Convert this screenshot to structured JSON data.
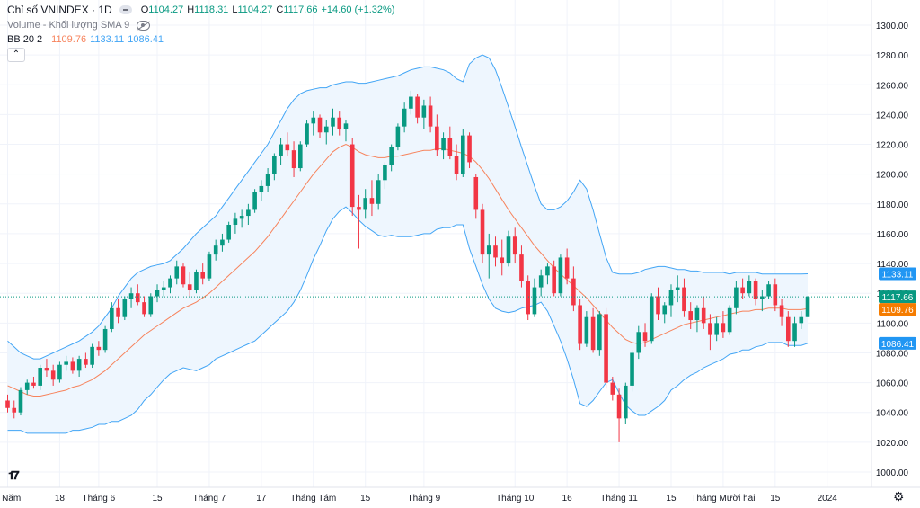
{
  "header": {
    "symbol": "Chỉ số VNINDEX · 1D",
    "ohlc": {
      "o_label": "O",
      "o_value": "1104.27",
      "h_label": "H",
      "h_value": "1118.31",
      "l_label": "L",
      "l_value": "1104.27",
      "c_label": "C",
      "c_value": "1117.66",
      "change": "+14.60 (+1.32%)"
    },
    "volume_label": "Volume - Khối lượng SMA 9",
    "bb_label": "BB 20 2",
    "bb_basis": "1109.76",
    "bb_upper": "1133.11",
    "bb_lower": "1086.41"
  },
  "colors": {
    "up": "#089981",
    "down": "#f23645",
    "basis": "#f7835c",
    "band": "#42a5f5",
    "band_fill": "#eef6fe",
    "grid": "#f0f3fa",
    "text": "#131722",
    "price_tag": "#089981"
  },
  "icons": [
    "tradingview-logo-icon",
    "gear-icon",
    "eye-off-icon",
    "collapse-icon"
  ],
  "chart_data": {
    "type": "candlestick",
    "ylim": [
      1000,
      1300
    ],
    "y_ticks": [
      "1300.00",
      "1280.00",
      "1260.00",
      "1240.00",
      "1220.00",
      "1200.00",
      "1180.00",
      "1160.00",
      "1140.00",
      "1120.00",
      "1100.00",
      "1080.00",
      "1060.00",
      "1040.00",
      "1020.00",
      "1000.00"
    ],
    "x_labels": [
      {
        "label": "g Năm",
        "idx": 0
      },
      {
        "label": "18",
        "idx": 8
      },
      {
        "label": "Tháng 6",
        "idx": 14
      },
      {
        "label": "15",
        "idx": 23
      },
      {
        "label": "Tháng 7",
        "idx": 31
      },
      {
        "label": "17",
        "idx": 39
      },
      {
        "label": "Tháng Tám",
        "idx": 47
      },
      {
        "label": "15",
        "idx": 55
      },
      {
        "label": "Tháng 9",
        "idx": 64
      },
      {
        "label": "Tháng 10",
        "idx": 78
      },
      {
        "label": "16",
        "idx": 86
      },
      {
        "label": "Tháng 11",
        "idx": 94
      },
      {
        "label": "15",
        "idx": 102
      },
      {
        "label": "Tháng Mười hai",
        "idx": 110
      },
      {
        "label": "15",
        "idx": 118
      },
      {
        "label": "2024",
        "idx": 126
      }
    ],
    "price_tags": {
      "upper": "1133.11",
      "last": "1117.66",
      "basis": "1109.76",
      "lower": "1086.41"
    },
    "candles": [
      [
        1048,
        1052,
        1040,
        1043
      ],
      [
        1043,
        1048,
        1036,
        1040
      ],
      [
        1040,
        1057,
        1038,
        1055
      ],
      [
        1055,
        1062,
        1052,
        1060
      ],
      [
        1060,
        1064,
        1056,
        1058
      ],
      [
        1058,
        1072,
        1055,
        1070
      ],
      [
        1070,
        1076,
        1064,
        1068
      ],
      [
        1068,
        1072,
        1058,
        1062
      ],
      [
        1062,
        1074,
        1060,
        1072
      ],
      [
        1072,
        1078,
        1068,
        1074
      ],
      [
        1074,
        1077,
        1066,
        1068
      ],
      [
        1068,
        1078,
        1064,
        1076
      ],
      [
        1076,
        1080,
        1070,
        1072
      ],
      [
        1072,
        1086,
        1070,
        1084
      ],
      [
        1084,
        1088,
        1078,
        1082
      ],
      [
        1082,
        1098,
        1080,
        1096
      ],
      [
        1096,
        1114,
        1094,
        1110
      ],
      [
        1110,
        1116,
        1100,
        1104
      ],
      [
        1104,
        1118,
        1102,
        1116
      ],
      [
        1116,
        1124,
        1110,
        1120
      ],
      [
        1120,
        1126,
        1112,
        1114
      ],
      [
        1114,
        1118,
        1104,
        1106
      ],
      [
        1106,
        1120,
        1104,
        1118
      ],
      [
        1118,
        1126,
        1114,
        1122
      ],
      [
        1122,
        1128,
        1118,
        1124
      ],
      [
        1124,
        1132,
        1120,
        1130
      ],
      [
        1130,
        1142,
        1126,
        1138
      ],
      [
        1138,
        1140,
        1124,
        1126
      ],
      [
        1126,
        1134,
        1118,
        1122
      ],
      [
        1122,
        1136,
        1120,
        1134
      ],
      [
        1134,
        1140,
        1126,
        1130
      ],
      [
        1130,
        1148,
        1128,
        1146
      ],
      [
        1146,
        1156,
        1142,
        1152
      ],
      [
        1152,
        1160,
        1148,
        1156
      ],
      [
        1156,
        1168,
        1154,
        1166
      ],
      [
        1166,
        1174,
        1160,
        1170
      ],
      [
        1170,
        1176,
        1164,
        1172
      ],
      [
        1172,
        1180,
        1166,
        1176
      ],
      [
        1176,
        1190,
        1174,
        1188
      ],
      [
        1188,
        1196,
        1182,
        1192
      ],
      [
        1192,
        1204,
        1188,
        1200
      ],
      [
        1200,
        1214,
        1196,
        1212
      ],
      [
        1212,
        1224,
        1206,
        1220
      ],
      [
        1220,
        1228,
        1212,
        1216
      ],
      [
        1216,
        1222,
        1198,
        1204
      ],
      [
        1204,
        1222,
        1202,
        1220
      ],
      [
        1220,
        1236,
        1218,
        1234
      ],
      [
        1234,
        1242,
        1226,
        1238
      ],
      [
        1238,
        1240,
        1224,
        1228
      ],
      [
        1228,
        1236,
        1220,
        1232
      ],
      [
        1232,
        1244,
        1226,
        1238
      ],
      [
        1238,
        1242,
        1226,
        1230
      ],
      [
        1230,
        1236,
        1222,
        1234
      ],
      [
        1220,
        1224,
        1172,
        1178
      ],
      [
        1178,
        1186,
        1150,
        1176
      ],
      [
        1176,
        1190,
        1170,
        1184
      ],
      [
        1184,
        1196,
        1172,
        1180
      ],
      [
        1180,
        1200,
        1176,
        1196
      ],
      [
        1196,
        1208,
        1190,
        1206
      ],
      [
        1206,
        1220,
        1202,
        1218
      ],
      [
        1218,
        1234,
        1216,
        1232
      ],
      [
        1232,
        1248,
        1228,
        1244
      ],
      [
        1244,
        1256,
        1240,
        1252
      ],
      [
        1252,
        1254,
        1234,
        1238
      ],
      [
        1238,
        1250,
        1230,
        1246
      ],
      [
        1246,
        1252,
        1228,
        1232
      ],
      [
        1232,
        1240,
        1212,
        1216
      ],
      [
        1216,
        1228,
        1210,
        1224
      ],
      [
        1224,
        1232,
        1210,
        1212
      ],
      [
        1212,
        1220,
        1196,
        1200
      ],
      [
        1200,
        1230,
        1198,
        1226
      ],
      [
        1226,
        1228,
        1204,
        1208
      ],
      [
        1198,
        1200,
        1170,
        1176
      ],
      [
        1176,
        1180,
        1140,
        1146
      ],
      [
        1146,
        1160,
        1130,
        1152
      ],
      [
        1152,
        1158,
        1138,
        1144
      ],
      [
        1144,
        1156,
        1132,
        1140
      ],
      [
        1140,
        1162,
        1138,
        1158
      ],
      [
        1158,
        1164,
        1140,
        1146
      ],
      [
        1146,
        1152,
        1124,
        1128
      ],
      [
        1128,
        1132,
        1102,
        1106
      ],
      [
        1106,
        1130,
        1104,
        1124
      ],
      [
        1124,
        1136,
        1118,
        1132
      ],
      [
        1132,
        1140,
        1126,
        1138
      ],
      [
        1138,
        1142,
        1118,
        1120
      ],
      [
        1120,
        1146,
        1118,
        1144
      ],
      [
        1144,
        1150,
        1126,
        1130
      ],
      [
        1130,
        1138,
        1108,
        1112
      ],
      [
        1112,
        1116,
        1082,
        1086
      ],
      [
        1086,
        1108,
        1084,
        1104
      ],
      [
        1104,
        1110,
        1080,
        1082
      ],
      [
        1082,
        1108,
        1078,
        1106
      ],
      [
        1106,
        1110,
        1056,
        1060
      ],
      [
        1060,
        1064,
        1048,
        1052
      ],
      [
        1052,
        1056,
        1020,
        1036
      ],
      [
        1036,
        1060,
        1032,
        1058
      ],
      [
        1058,
        1082,
        1054,
        1080
      ],
      [
        1080,
        1098,
        1076,
        1094
      ],
      [
        1094,
        1100,
        1084,
        1088
      ],
      [
        1088,
        1120,
        1086,
        1118
      ],
      [
        1118,
        1124,
        1102,
        1106
      ],
      [
        1106,
        1114,
        1100,
        1112
      ],
      [
        1112,
        1126,
        1104,
        1122
      ],
      [
        1122,
        1132,
        1114,
        1124
      ],
      [
        1124,
        1130,
        1104,
        1108
      ],
      [
        1108,
        1114,
        1096,
        1102
      ],
      [
        1102,
        1112,
        1094,
        1110
      ],
      [
        1110,
        1118,
        1096,
        1100
      ],
      [
        1100,
        1106,
        1082,
        1092
      ],
      [
        1092,
        1104,
        1088,
        1100
      ],
      [
        1100,
        1108,
        1090,
        1094
      ],
      [
        1094,
        1112,
        1092,
        1110
      ],
      [
        1110,
        1128,
        1106,
        1124
      ],
      [
        1124,
        1130,
        1116,
        1120
      ],
      [
        1120,
        1132,
        1118,
        1128
      ],
      [
        1128,
        1130,
        1112,
        1116
      ],
      [
        1116,
        1122,
        1108,
        1118
      ],
      [
        1118,
        1128,
        1116,
        1126
      ],
      [
        1126,
        1130,
        1108,
        1112
      ],
      [
        1112,
        1116,
        1098,
        1104
      ],
      [
        1104,
        1108,
        1084,
        1088
      ],
      [
        1088,
        1104,
        1084,
        1100
      ],
      [
        1100,
        1108,
        1096,
        1104
      ],
      [
        1104,
        1118.31,
        1104,
        1117.66
      ]
    ],
    "bb_basis": [
      1058,
      1056,
      1054,
      1052,
      1051,
      1051,
      1052,
      1053,
      1054,
      1055,
      1057,
      1058,
      1060,
      1062,
      1065,
      1068,
      1072,
      1076,
      1080,
      1084,
      1088,
      1092,
      1095,
      1098,
      1101,
      1104,
      1107,
      1110,
      1112,
      1114,
      1117,
      1120,
      1124,
      1128,
      1132,
      1136,
      1140,
      1144,
      1148,
      1153,
      1158,
      1164,
      1170,
      1176,
      1182,
      1188,
      1194,
      1200,
      1205,
      1210,
      1215,
      1218,
      1220,
      1218,
      1215,
      1213,
      1212,
      1211,
      1211,
      1212,
      1212,
      1213,
      1214,
      1215,
      1216,
      1216,
      1217,
      1217,
      1216,
      1215,
      1214,
      1212,
      1208,
      1203,
      1197,
      1190,
      1183,
      1176,
      1170,
      1164,
      1158,
      1152,
      1147,
      1142,
      1137,
      1133,
      1129,
      1125,
      1121,
      1117,
      1112,
      1107,
      1102,
      1097,
      1093,
      1089,
      1087,
      1086,
      1087,
      1089,
      1091,
      1093,
      1095,
      1097,
      1099,
      1100,
      1101,
      1102,
      1103,
      1104,
      1105,
      1106,
      1107,
      1108,
      1108,
      1109,
      1109,
      1110,
      1110,
      1110,
      1109,
      1109,
      1109,
      1109.76
    ],
    "bb_upper": [
      1088,
      1084,
      1080,
      1078,
      1076,
      1076,
      1078,
      1080,
      1082,
      1084,
      1086,
      1088,
      1091,
      1094,
      1098,
      1104,
      1110,
      1118,
      1124,
      1130,
      1134,
      1136,
      1138,
      1139,
      1140,
      1142,
      1146,
      1150,
      1155,
      1160,
      1164,
      1168,
      1172,
      1178,
      1184,
      1190,
      1196,
      1202,
      1208,
      1214,
      1220,
      1228,
      1236,
      1244,
      1250,
      1254,
      1256,
      1257,
      1258,
      1258,
      1260,
      1261,
      1262,
      1262,
      1261,
      1261,
      1262,
      1263,
      1264,
      1265,
      1266,
      1268,
      1270,
      1271,
      1272,
      1272,
      1271,
      1270,
      1268,
      1264,
      1262,
      1274,
      1278,
      1280,
      1278,
      1270,
      1258,
      1245,
      1232,
      1218,
      1205,
      1192,
      1180,
      1176,
      1176,
      1178,
      1182,
      1188,
      1196,
      1190,
      1176,
      1160,
      1144,
      1134,
      1133,
      1133,
      1133,
      1134,
      1136,
      1137,
      1138,
      1138,
      1137,
      1136,
      1136,
      1135,
      1135,
      1134,
      1134,
      1134,
      1134,
      1133,
      1134,
      1134,
      1134,
      1134,
      1133,
      1133,
      1133,
      1133,
      1133,
      1133,
      1133,
      1133.11
    ],
    "bb_lower": [
      1028,
      1028,
      1028,
      1026,
      1026,
      1026,
      1026,
      1026,
      1026,
      1026,
      1028,
      1028,
      1029,
      1030,
      1032,
      1032,
      1034,
      1034,
      1036,
      1038,
      1042,
      1048,
      1052,
      1057,
      1062,
      1066,
      1068,
      1070,
      1069,
      1068,
      1070,
      1072,
      1076,
      1078,
      1080,
      1082,
      1084,
      1086,
      1088,
      1092,
      1096,
      1100,
      1104,
      1108,
      1114,
      1122,
      1132,
      1143,
      1152,
      1162,
      1170,
      1175,
      1178,
      1174,
      1169,
      1165,
      1162,
      1159,
      1158,
      1159,
      1158,
      1158,
      1158,
      1159,
      1160,
      1160,
      1163,
      1164,
      1164,
      1166,
      1166,
      1150,
      1138,
      1126,
      1116,
      1110,
      1108,
      1107,
      1108,
      1110,
      1111,
      1112,
      1114,
      1108,
      1098,
      1088,
      1076,
      1062,
      1046,
      1044,
      1048,
      1054,
      1060,
      1062,
      1053,
      1045,
      1041,
      1038,
      1038,
      1041,
      1044,
      1048,
      1055,
      1058,
      1062,
      1065,
      1067,
      1070,
      1072,
      1074,
      1076,
      1079,
      1080,
      1082,
      1082,
      1084,
      1085,
      1087,
      1087,
      1087,
      1085,
      1085,
      1085,
      1086.41
    ]
  }
}
